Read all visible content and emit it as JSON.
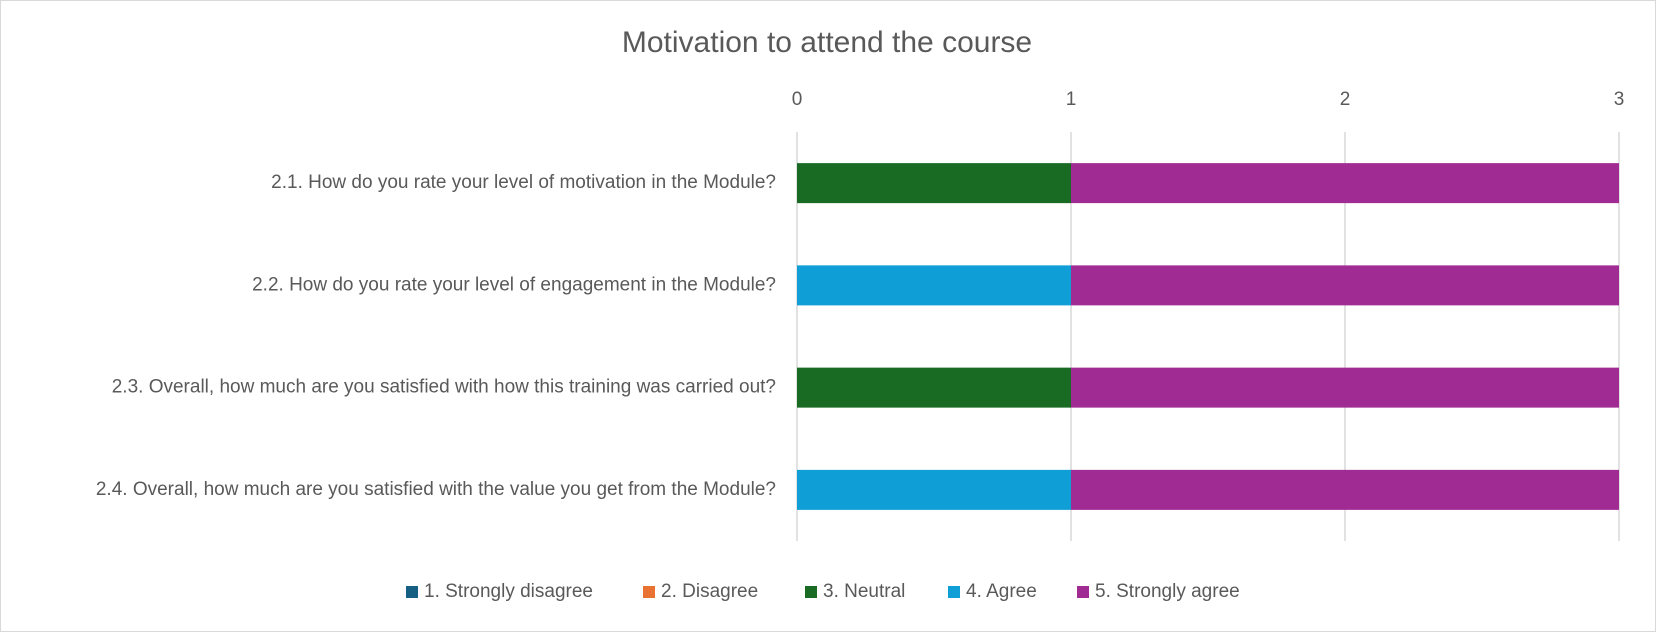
{
  "chart_data": {
    "type": "stacked_bar_horizontal",
    "title": "Motivation to attend the course",
    "categories": [
      "2.1. How do you rate your level of motivation in the Module?",
      "2.2. How do you rate your level of engagement in the Module?",
      "2.3. Overall, how much are you satisfied with how this training was carried out?",
      "2.4. Overall, how much are you satisfied with the value you get from the Module?"
    ],
    "series": [
      {
        "name": "1. Strongly disagree",
        "color": "#156082",
        "values": [
          0,
          0,
          0,
          0
        ]
      },
      {
        "name": "2. Disagree",
        "color": "#e97132",
        "values": [
          0,
          0,
          0,
          0
        ]
      },
      {
        "name": "3. Neutral",
        "color": "#196b24",
        "values": [
          1,
          0,
          1,
          0
        ]
      },
      {
        "name": "4. Agree",
        "color": "#0f9ed5",
        "values": [
          0,
          1,
          0,
          1
        ]
      },
      {
        "name": "5. Strongly agree",
        "color": "#a02b93",
        "values": [
          2,
          2,
          2,
          2
        ]
      }
    ],
    "xlim": [
      0,
      3
    ],
    "xticks": [
      0,
      1,
      2,
      3
    ],
    "grid": true,
    "legend": "bottom"
  }
}
